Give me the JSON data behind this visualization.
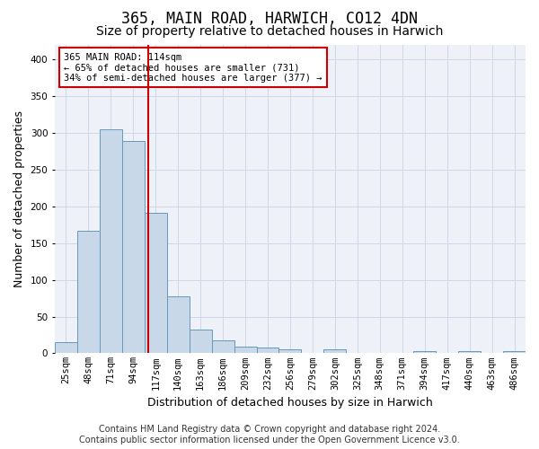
{
  "title": "365, MAIN ROAD, HARWICH, CO12 4DN",
  "subtitle": "Size of property relative to detached houses in Harwich",
  "xlabel": "Distribution of detached houses by size in Harwich",
  "ylabel": "Number of detached properties",
  "bar_values": [
    15,
    167,
    305,
    289,
    191,
    77,
    32,
    18,
    9,
    8,
    5,
    0,
    5,
    0,
    0,
    0,
    3,
    0,
    3,
    0,
    3
  ],
  "bar_labels": [
    "25sqm",
    "48sqm",
    "71sqm",
    "94sqm",
    "117sqm",
    "140sqm",
    "163sqm",
    "186sqm",
    "209sqm",
    "232sqm",
    "256sqm",
    "279sqm",
    "302sqm",
    "325sqm",
    "348sqm",
    "371sqm",
    "394sqm",
    "417sqm",
    "440sqm",
    "463sqm",
    "486sqm"
  ],
  "bar_color": "#c8d8e8",
  "bar_edge_color": "#6699bb",
  "vline_x": 3.65,
  "vline_color": "#cc0000",
  "annotation_box_text": "365 MAIN ROAD: 114sqm\n← 65% of detached houses are smaller (731)\n34% of semi-detached houses are larger (377) →",
  "annotation_box_color": "#cc0000",
  "annotation_box_bg": "#ffffff",
  "ylim": [
    0,
    420
  ],
  "yticks": [
    0,
    50,
    100,
    150,
    200,
    250,
    300,
    350,
    400
  ],
  "grid_color": "#d0d8e8",
  "bg_color": "#eef2f8",
  "footer_line1": "Contains HM Land Registry data © Crown copyright and database right 2024.",
  "footer_line2": "Contains public sector information licensed under the Open Government Licence v3.0.",
  "title_fontsize": 12,
  "subtitle_fontsize": 10,
  "xlabel_fontsize": 9,
  "ylabel_fontsize": 9,
  "tick_fontsize": 7.5,
  "footer_fontsize": 7
}
